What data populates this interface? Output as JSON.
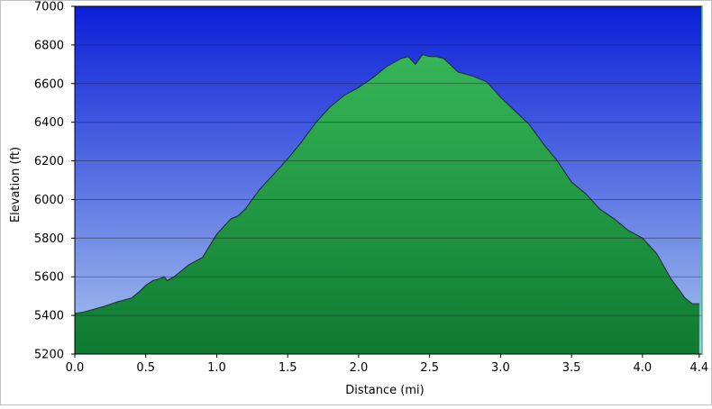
{
  "chart_data": {
    "type": "area",
    "title": "",
    "xlabel": "Distance    (mi)",
    "ylabel": "Elevation  (ft)",
    "xlim": [
      0.0,
      4.42
    ],
    "ylim": [
      5200,
      7000
    ],
    "x_ticks": [
      "0.0",
      "0.5",
      "1.0",
      "1.5",
      "2.0",
      "2.5",
      "3.0",
      "3.5",
      "4.0",
      "4.4"
    ],
    "y_ticks": [
      "5200",
      "5400",
      "5600",
      "5800",
      "6000",
      "6200",
      "6400",
      "6600",
      "6800",
      "7000"
    ],
    "x_tick_values": [
      0.0,
      0.5,
      1.0,
      1.5,
      2.0,
      2.5,
      3.0,
      3.5,
      4.0,
      4.4
    ],
    "y_tick_values": [
      5200,
      5400,
      5600,
      5800,
      6000,
      6200,
      6400,
      6600,
      6800,
      7000
    ],
    "grid": true,
    "legend": "none",
    "colors": {
      "sky_top": "#0b1fd8",
      "sky_bottom": "#a8c4ee",
      "fill_top": "#35b657",
      "fill_bottom": "#0f7a31",
      "profile_line": "#1a3f22",
      "gridline": "#202020",
      "frame": "#000000"
    },
    "series": [
      {
        "x": [
          0.0,
          0.05,
          0.1,
          0.2,
          0.3,
          0.4,
          0.45,
          0.5,
          0.55,
          0.6,
          0.63,
          0.65,
          0.7,
          0.75,
          0.8,
          0.9,
          1.0,
          1.05,
          1.1,
          1.15,
          1.2,
          1.3,
          1.4,
          1.5,
          1.6,
          1.7,
          1.8,
          1.9,
          2.0,
          2.1,
          2.2,
          2.3,
          2.35,
          2.4,
          2.45,
          2.5,
          2.55,
          2.6,
          2.7,
          2.8,
          2.9,
          3.0,
          3.1,
          3.2,
          3.3,
          3.4,
          3.5,
          3.6,
          3.7,
          3.8,
          3.9,
          4.0,
          4.1,
          4.2,
          4.3,
          4.35,
          4.4
        ],
        "y": [
          5410,
          5415,
          5425,
          5445,
          5470,
          5490,
          5520,
          5555,
          5580,
          5590,
          5600,
          5580,
          5600,
          5630,
          5660,
          5700,
          5820,
          5860,
          5900,
          5915,
          5950,
          6050,
          6130,
          6210,
          6300,
          6400,
          6480,
          6540,
          6580,
          6630,
          6690,
          6730,
          6740,
          6700,
          6750,
          6740,
          6740,
          6730,
          6660,
          6640,
          6610,
          6530,
          6460,
          6390,
          6290,
          6200,
          6090,
          6030,
          5950,
          5900,
          5840,
          5800,
          5720,
          5590,
          5490,
          5460,
          5460
        ]
      }
    ]
  }
}
